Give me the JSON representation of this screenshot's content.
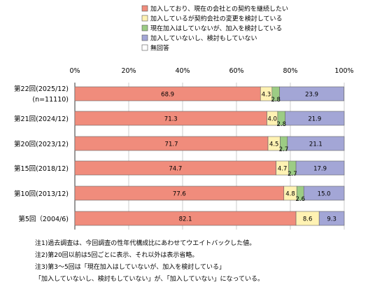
{
  "chart_data": {
    "type": "bar",
    "orientation": "horizontal",
    "stacked": true,
    "xlim": [
      0,
      100
    ],
    "x_ticks": [
      "0%",
      "20%",
      "40%",
      "60%",
      "80%",
      "100%"
    ],
    "grid": true,
    "legend_position": "top",
    "categories": [
      [
        "第22回(2025/12)",
        "(n=11110)"
      ],
      [
        "第21回(2024/12)"
      ],
      [
        "第20回(2023/12)"
      ],
      [
        "第15回(2018/12)"
      ],
      [
        "第10回(2013/12)"
      ],
      [
        "第5回（2004/6)"
      ]
    ],
    "series": [
      {
        "name": "加入しており、現在の会社との契約を継続したい",
        "color": "#f08c7c",
        "values": [
          68.9,
          71.3,
          71.7,
          74.7,
          77.6,
          82.1
        ]
      },
      {
        "name": "加入しているが契約会社の変更を検討している",
        "color": "#fff2b3",
        "values": [
          4.3,
          4.0,
          4.5,
          4.7,
          4.8,
          8.6
        ]
      },
      {
        "name": "現在加入はしていないが、加入を検討している",
        "color": "#9ccc84",
        "values": [
          2.8,
          2.8,
          2.7,
          2.7,
          2.6,
          0
        ]
      },
      {
        "name": "加入していないし、検討もしていない",
        "color": "#a3a6d6",
        "values": [
          23.9,
          21.9,
          21.1,
          17.9,
          15.0,
          9.3
        ]
      },
      {
        "name": "無回答",
        "color": "#ffffff",
        "values": [
          0,
          0,
          0,
          0,
          0,
          0
        ]
      }
    ]
  },
  "notes": [
    "注1)過去調査は、今回調査の性年代構成比にあわせてウエイトバックした値。",
    "注2)第20回以前は5回ごとに表示、それ以外は表示省略。",
    "注3)第3～5回は「現在加入はしていないが、加入を検討している」",
    "「加入していないし、検討もしていない」が、「加入していない」になっている。"
  ]
}
